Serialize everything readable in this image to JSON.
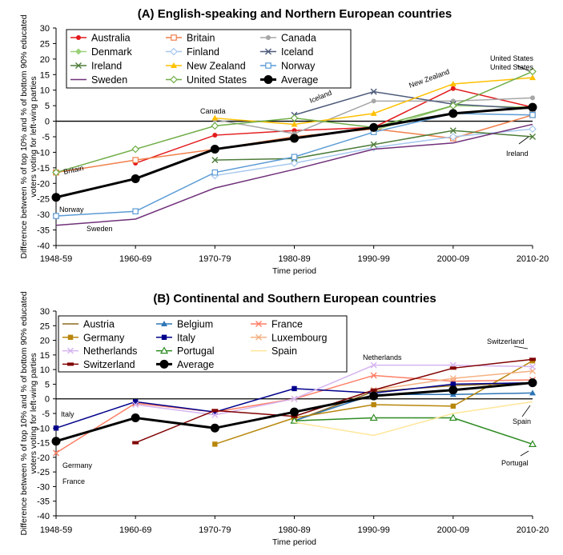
{
  "chart_data": [
    {
      "type": "line",
      "title": "(A)  English-speaking and Northern European countries",
      "xlabel": "Time period",
      "ylabel": "Difference between % of top 10% and % of bottom 90% educated voters voting for left-wing parties",
      "ylim": [
        -40,
        30
      ],
      "yticks": [
        -40,
        -35,
        -30,
        -25,
        -20,
        -15,
        -10,
        -5,
        0,
        5,
        10,
        15,
        20,
        25,
        30
      ],
      "categories": [
        "1948-59",
        "1960-69",
        "1970-79",
        "1980-89",
        "1990-99",
        "2000-09",
        "2010-20"
      ],
      "legend_placement": "top-left, inside",
      "series": [
        {
          "name": "Australia",
          "color": "#e31a1c",
          "marker": "dot",
          "values": [
            null,
            -13.5,
            -4.5,
            -3,
            -2,
            10.5,
            4.5
          ]
        },
        {
          "name": "Britain",
          "color": "#f07f4a",
          "marker": "square-open",
          "values": [
            -16.5,
            -12.5,
            -9,
            -5,
            -2.5,
            -5.5,
            2
          ]
        },
        {
          "name": "Canada",
          "color": "#a6a6a6",
          "marker": "dot",
          "values": [
            null,
            null,
            0.5,
            -4,
            6.5,
            6.5,
            7.5
          ]
        },
        {
          "name": "Denmark",
          "color": "#9bd178",
          "marker": "diamond",
          "values": [
            null,
            null,
            null,
            null,
            -3,
            5,
            4.5
          ]
        },
        {
          "name": "Finland",
          "color": "#a6c8ee",
          "marker": "diamond-open",
          "values": [
            null,
            null,
            -17.5,
            -13.5,
            -8.5,
            -5,
            -2.5
          ]
        },
        {
          "name": "Iceland",
          "color": "#4d5a7a",
          "marker": "x",
          "values": [
            null,
            null,
            null,
            2,
            9.5,
            5.5,
            4
          ]
        },
        {
          "name": "Ireland",
          "color": "#4e7d3a",
          "marker": "x",
          "values": [
            null,
            null,
            -12.5,
            -12,
            -7.5,
            -3,
            -5
          ]
        },
        {
          "name": "New Zealand",
          "color": "#ffc000",
          "marker": "triangle",
          "values": [
            null,
            null,
            1,
            -1,
            2.5,
            12,
            14
          ]
        },
        {
          "name": "Norway",
          "color": "#5b9bd5",
          "marker": "square-open",
          "values": [
            -30.5,
            -29,
            -16.5,
            -11.5,
            -3.5,
            2.5,
            2
          ]
        },
        {
          "name": "Sweden",
          "color": "#70307a",
          "marker": "line",
          "values": [
            -33.5,
            -31.5,
            -21.5,
            -15.5,
            -9,
            -7,
            -1
          ]
        },
        {
          "name": "United States",
          "color": "#70ad47",
          "marker": "diamond-open",
          "values": [
            -16.5,
            -9,
            -1.5,
            1,
            -2,
            5,
            16
          ]
        },
        {
          "name": "Average",
          "color": "#000000",
          "marker": "bigdot",
          "values": [
            -24.5,
            -18.5,
            -9,
            -5.5,
            -2,
            2.5,
            4.5
          ]
        }
      ],
      "annotations": [
        "Canada",
        "Iceland",
        "New Zealand",
        "United States",
        "United States",
        "Britain",
        "Ireland",
        "Norway",
        "Sweden"
      ]
    },
    {
      "type": "line",
      "title": "(B)  Continental and Southern European countries",
      "xlabel": "Time period",
      "ylabel": "Difference between % of top 10% and % of bottom 90% educated voters voting for left-wing parties",
      "ylim": [
        -40,
        30
      ],
      "yticks": [
        -40,
        -35,
        -30,
        -25,
        -20,
        -15,
        -10,
        -5,
        0,
        5,
        10,
        15,
        20,
        25,
        30
      ],
      "categories": [
        "1948-59",
        "1960-69",
        "1970-79",
        "1980-89",
        "1990-99",
        "2000-09",
        "2010-20"
      ],
      "legend_placement": "top-left, inside",
      "series": [
        {
          "name": "Austria",
          "color": "#8c6a1e",
          "marker": "line",
          "values": [
            null,
            null,
            null,
            -7.5,
            2.5,
            4.5,
            5.5
          ]
        },
        {
          "name": "Belgium",
          "color": "#2e75b6",
          "marker": "triangle",
          "values": [
            null,
            null,
            null,
            -7.5,
            1.5,
            1.5,
            2
          ]
        },
        {
          "name": "France",
          "color": "#ff7f66",
          "marker": "x",
          "values": [
            -18.5,
            -1.5,
            -4.5,
            0,
            8,
            6,
            6.5
          ]
        },
        {
          "name": "Germany",
          "color": "#b8860b",
          "marker": "square",
          "values": [
            null,
            null,
            -15.5,
            -6.5,
            -2,
            -2.5,
            13
          ]
        },
        {
          "name": "Italy",
          "color": "#00008b",
          "marker": "square",
          "values": [
            -10,
            -1,
            -4.5,
            3.5,
            2,
            5,
            5.5
          ]
        },
        {
          "name": "Luxembourg",
          "color": "#f4b183",
          "marker": "x",
          "values": [
            null,
            null,
            null,
            null,
            3,
            7,
            9.5
          ]
        },
        {
          "name": "Netherlands",
          "color": "#d5b5f0",
          "marker": "x",
          "values": [
            null,
            -2,
            -5.5,
            0,
            11.5,
            11.5,
            11
          ]
        },
        {
          "name": "Portugal",
          "color": "#2e8b22",
          "marker": "triangle-open",
          "values": [
            null,
            null,
            null,
            -7.5,
            -6.5,
            -6.5,
            -15.5
          ]
        },
        {
          "name": "Spain",
          "color": "#ffe699",
          "marker": "line",
          "values": [
            null,
            null,
            null,
            -8,
            -12.5,
            -5,
            -1
          ]
        },
        {
          "name": "Switzerland",
          "color": "#800000",
          "marker": "dash",
          "values": [
            null,
            -15,
            -4,
            -6,
            3,
            10.5,
            13.5
          ]
        },
        {
          "name": "Average",
          "color": "#000000",
          "marker": "bigdot",
          "values": [
            -14.5,
            -6.5,
            -10,
            -4.5,
            1,
            3,
            5.5
          ]
        }
      ],
      "annotations": [
        "Netherlands",
        "Switzerland",
        "Italy",
        "Germany",
        "France",
        "Spain",
        "Portugal"
      ]
    }
  ]
}
